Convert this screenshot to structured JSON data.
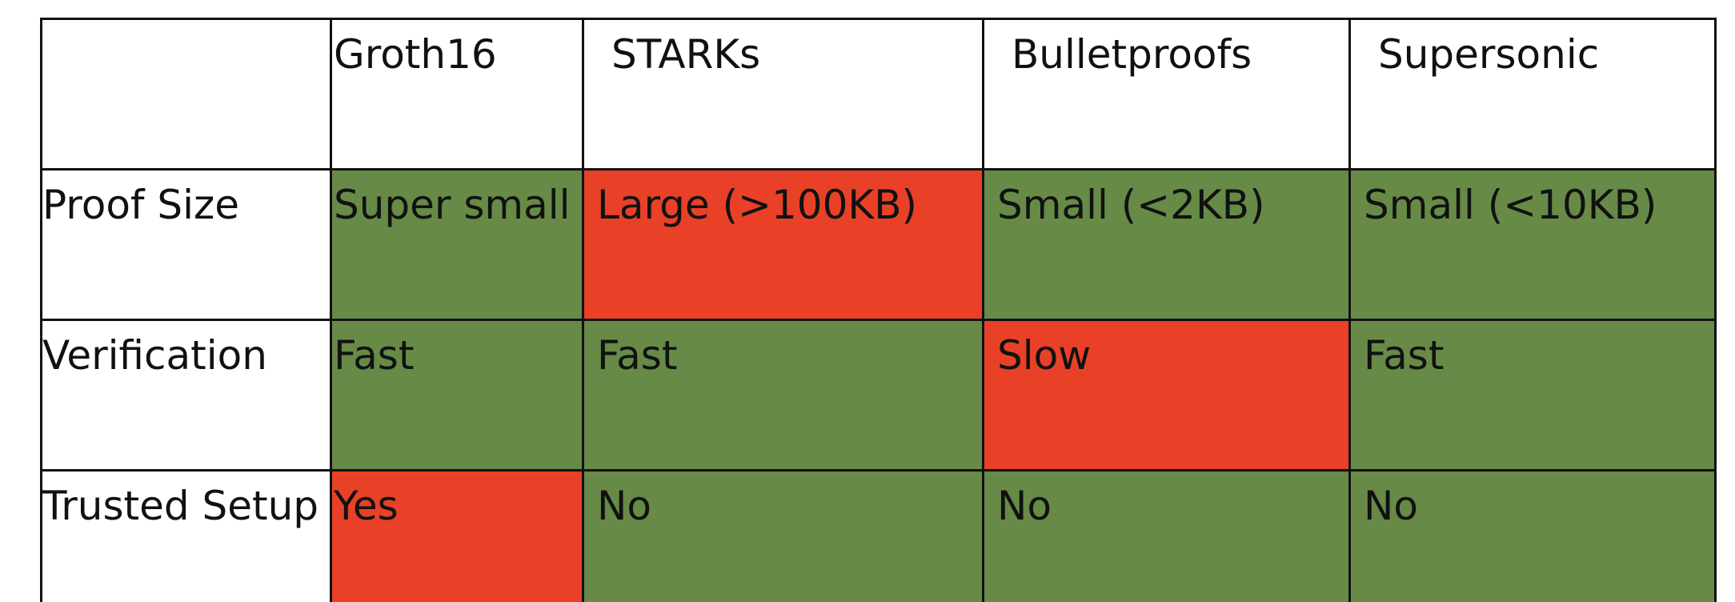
{
  "table": {
    "corner": "",
    "columns": [
      "Groth16",
      "STARKs",
      "Bulletproofs",
      "Supersonic"
    ],
    "rows": [
      {
        "label": "Proof Size",
        "cells": [
          {
            "text": "Super small",
            "status": "good"
          },
          {
            "text": "Large (>100KB)",
            "status": "bad"
          },
          {
            "text": "Small (<2KB)",
            "status": "good"
          },
          {
            "text": "Small (<10KB)",
            "status": "good"
          }
        ]
      },
      {
        "label": "Verification",
        "cells": [
          {
            "text": "Fast",
            "status": "good"
          },
          {
            "text": "Fast",
            "status": "good"
          },
          {
            "text": "Slow",
            "status": "bad"
          },
          {
            "text": "Fast",
            "status": "good"
          }
        ]
      },
      {
        "label": "Trusted Setup",
        "cells": [
          {
            "text": "Yes",
            "status": "bad"
          },
          {
            "text": "No",
            "status": "good"
          },
          {
            "text": "No",
            "status": "good"
          },
          {
            "text": "No",
            "status": "good"
          }
        ]
      }
    ]
  },
  "colors": {
    "good": "#678a47",
    "bad": "#e84127",
    "border": "#111111",
    "text": "#111111"
  }
}
